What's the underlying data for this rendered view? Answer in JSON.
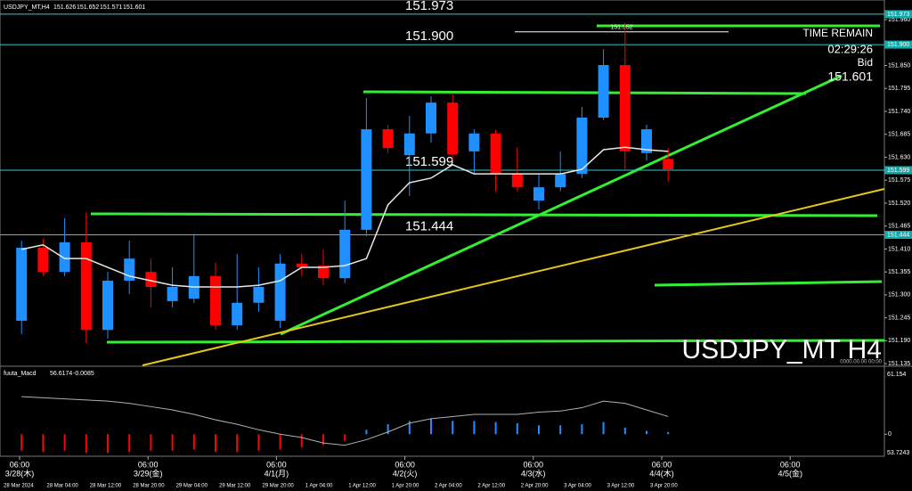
{
  "chart_data": [
    {
      "type": "candlestick",
      "title": "USDJPY_MT,H4",
      "watermark": "USDJPY_MT H4",
      "open": [
        151.238,
        151.413,
        151.355,
        151.426,
        151.216,
        151.334,
        151.355,
        151.285,
        151.291,
        151.345,
        151.227,
        151.281,
        151.238,
        151.375,
        151.37,
        151.34,
        151.456,
        151.697,
        151.635,
        151.687,
        151.761,
        151.644,
        151.687,
        151.59,
        151.526,
        151.558,
        151.59,
        151.725,
        151.851,
        151.64,
        151.626
      ],
      "high": [
        151.43,
        151.434,
        151.484,
        151.498,
        151.355,
        151.43,
        151.387,
        151.366,
        151.447,
        151.377,
        151.398,
        151.366,
        151.398,
        151.398,
        151.409,
        151.526,
        151.772,
        151.708,
        151.729,
        151.776,
        151.783,
        151.697,
        151.697,
        151.654,
        151.59,
        151.644,
        151.751,
        151.889,
        151.952,
        151.708,
        151.652
      ],
      "low": [
        151.206,
        151.345,
        151.345,
        151.184,
        151.195,
        151.302,
        151.27,
        151.27,
        151.281,
        151.216,
        151.216,
        151.259,
        151.221,
        151.345,
        151.323,
        151.328,
        151.441,
        151.64,
        151.537,
        151.665,
        151.622,
        151.59,
        151.548,
        151.548,
        151.505,
        151.548,
        151.58,
        151.719,
        151.601,
        151.622,
        151.571
      ],
      "close": [
        151.413,
        151.355,
        151.426,
        151.216,
        151.334,
        151.387,
        151.319,
        151.319,
        151.345,
        151.227,
        151.281,
        151.319,
        151.375,
        151.366,
        151.34,
        151.456,
        151.697,
        151.652,
        151.687,
        151.761,
        151.637,
        151.687,
        151.59,
        151.558,
        151.558,
        151.59,
        151.725,
        151.851,
        151.644,
        151.697,
        151.601
      ],
      "colors": {
        "up": "#1e90ff",
        "down": "#ff0000"
      },
      "ma": {
        "color": "#e8e8e8",
        "values": [
          151.409,
          151.42,
          151.387,
          151.387,
          151.366,
          151.345,
          151.334,
          151.323,
          151.319,
          151.319,
          151.319,
          151.323,
          151.334,
          151.366,
          151.366,
          151.37,
          151.387,
          151.516,
          151.569,
          151.58,
          151.612,
          151.59,
          151.59,
          151.59,
          151.59,
          151.59,
          151.601,
          151.648,
          151.654,
          151.648,
          151.644
        ]
      },
      "ylim": [
        151.131,
        152.007
      ],
      "yticks": [
        {
          "value": 151.96,
          "label": "151.960"
        },
        {
          "value": 151.85,
          "label": "151.850"
        },
        151.795,
        {
          "value": 151.74,
          "label": "151.740"
        },
        151.685,
        {
          "value": 151.63,
          "label": "151.630"
        },
        151.575,
        {
          "value": 151.52,
          "label": "151.520"
        },
        151.465,
        {
          "value": 151.41,
          "label": "151.410"
        },
        151.355,
        {
          "value": 151.3,
          "label": "151.300"
        },
        151.245,
        {
          "value": 151.19,
          "label": "151.190"
        },
        151.135
      ],
      "hlines": [
        151.973,
        {
          "value": 151.9,
          "label": "151.900"
        },
        151.599,
        151.444
      ],
      "high_marker": 151.952,
      "info": {
        "time_remain_label": "TIME REMAIN",
        "time_remain": "02:29:26",
        "bid_label": "Bid",
        "bid": 151.601
      },
      "empty_time": "0000.00.00 00:00",
      "date_labels": [
        {
          "time": "06:00",
          "date": "3/28(木)"
        },
        {
          "time": "06:00",
          "date": "3/29(金)"
        },
        {
          "time": "06:00",
          "date": "4/1(月)"
        },
        {
          "time": "06:00",
          "date": "4/2(火)"
        },
        {
          "time": "06:00",
          "date": "4/3(水)"
        },
        {
          "time": "06:00",
          "date": "4/4(木)"
        },
        {
          "time": "06:00",
          "date": "4/5(金)"
        }
      ],
      "time_labels": [
        "28 Mar 2024",
        "28 Mar 04:00",
        "28 Mar 12:00",
        "28 Mar 20:00",
        "29 Mar 04:00",
        "29 Mar 12:00",
        "29 Mar 20:00",
        "1 Apr 04:00",
        "1 Apr 12:00",
        "1 Apr 20:00",
        "2 Apr 04:00",
        "2 Apr 12:00",
        "2 Apr 20:00",
        "3 Apr 04:00",
        "3 Apr 12:00",
        "3 Apr 20:00"
      ]
    },
    {
      "type": "macd",
      "name": "fuuta_Macd",
      "header_values": [
        56.6174,
        -0.0085
      ],
      "histogram": {
        "up_color": "#1e90ff",
        "down_color": "#ff0000",
        "values": [
          -0.015,
          -0.016,
          -0.015,
          -0.017,
          -0.017,
          -0.016,
          -0.015,
          -0.015,
          -0.014,
          -0.016,
          -0.016,
          -0.015,
          -0.014,
          -0.012,
          -0.01,
          -0.006,
          0.004,
          0.009,
          0.012,
          0.014,
          0.012,
          0.012,
          0.011,
          0.01,
          0.008,
          0.008,
          0.009,
          0.011,
          0.006,
          0.003,
          0.002
        ]
      },
      "signal": {
        "color": "#b0b0b0",
        "values": [
          0.034,
          0.033,
          0.032,
          0.031,
          0.03,
          0.028,
          0.025,
          0.022,
          0.018,
          0.013,
          0.009,
          0.004,
          0,
          -0.003,
          -0.008,
          -0.01,
          -0.005,
          0.002,
          0.01,
          0.014,
          0.016,
          0.018,
          0.018,
          0.018,
          0.02,
          0.021,
          0.024,
          0.03,
          0.028,
          0.022,
          0.016
        ]
      },
      "ylim": [
        -0.02,
        0.06
      ],
      "yticks": [
        0
      ],
      "scale_labels": [
        "61.154",
        "53.7243"
      ]
    }
  ]
}
